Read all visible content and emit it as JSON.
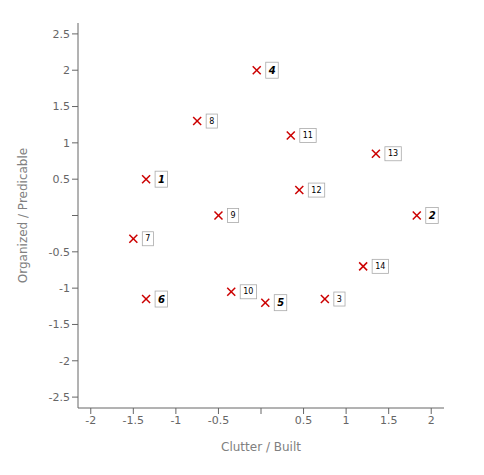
{
  "chart_data": {
    "type": "scatter",
    "xlabel": "Clutter / Built",
    "ylabel": "Organized / Predicable",
    "labels": [
      "1",
      "2",
      "3",
      "4",
      "5",
      "6",
      "7",
      "8",
      "9",
      "10",
      "11",
      "12",
      "13",
      "14"
    ],
    "x": [
      -1.35,
      1.83,
      0.75,
      -0.05,
      0.05,
      -1.35,
      -1.5,
      -0.75,
      -0.5,
      -0.35,
      0.35,
      0.45,
      1.35,
      1.2
    ],
    "values": [
      0.5,
      0.0,
      -1.15,
      2.0,
      -1.2,
      -1.15,
      -0.32,
      1.3,
      0.0,
      -1.05,
      1.1,
      0.35,
      0.85,
      -0.7
    ],
    "bold": [
      true,
      true,
      false,
      true,
      true,
      true,
      false,
      false,
      false,
      false,
      false,
      false,
      false,
      false
    ],
    "color": "#cc0000",
    "marker": "x",
    "xlim": [
      -2.15,
      2.15
    ],
    "ylim": [
      -2.65,
      2.65
    ],
    "xticks": [
      -2,
      -1.5,
      -1,
      -0.5,
      {
        "value": 0,
        "label": ""
      },
      0.5,
      1,
      1.5,
      2
    ],
    "yticks": [
      -2.5,
      -2,
      -1.5,
      -1,
      -0.5,
      {
        "value": 0,
        "label": ""
      },
      0.5,
      1,
      1.5,
      2,
      2.5
    ],
    "grid": false
  }
}
